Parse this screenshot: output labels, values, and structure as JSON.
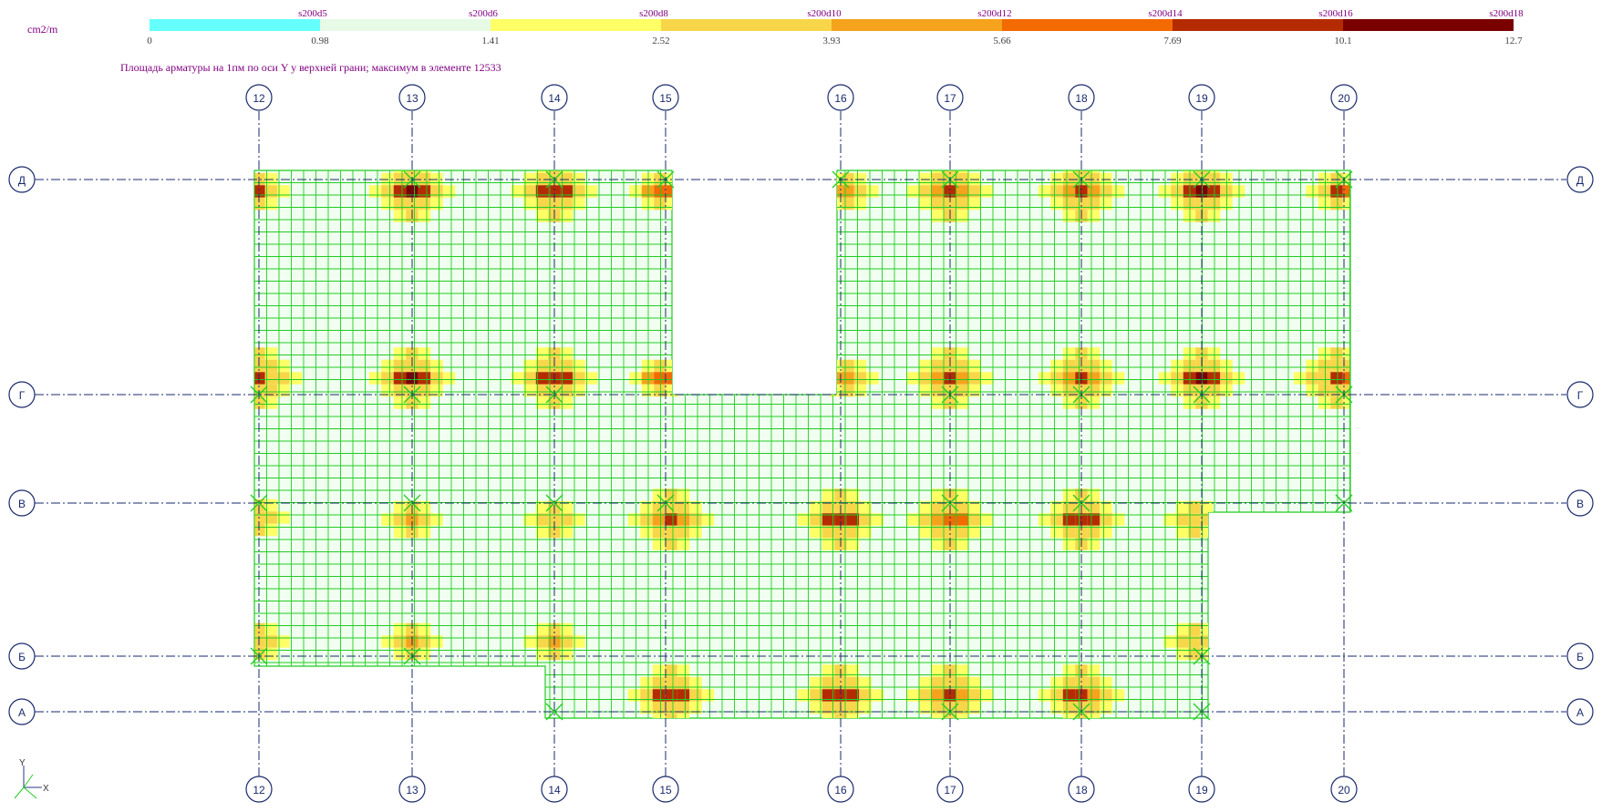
{
  "units_label": "cm2/m",
  "caption": "Площадь арматуры на 1пм по оси Y у верхней грани; максимум в элементе 12533",
  "legend": {
    "segments": [
      {
        "label": "s200d5",
        "color": "#66ffff"
      },
      {
        "label": "s200d6",
        "color": "#e6fae6"
      },
      {
        "label": "s200d8",
        "color": "#ffff66"
      },
      {
        "label": "s200d10",
        "color": "#f8d64a"
      },
      {
        "label": "s200d12",
        "color": "#f5a31c"
      },
      {
        "label": "s200d14",
        "color": "#f26a00"
      },
      {
        "label": "s200d16",
        "color": "#b52b00"
      },
      {
        "label": "s200d18",
        "color": "#7a0000"
      }
    ],
    "breaks": [
      "0",
      "0.98",
      "1.41",
      "2.52",
      "3.93",
      "5.66",
      "7.69",
      "10.1",
      "12.7"
    ]
  },
  "grid_axes": {
    "vertical": [
      "12",
      "13",
      "14",
      "15",
      "16",
      "17",
      "18",
      "19",
      "20"
    ],
    "horizontal": [
      "Д",
      "Г",
      "В",
      "Б",
      "А"
    ]
  },
  "mesh": {
    "line_color": "#22cc22",
    "fill_color": "#f0fff0"
  },
  "ucs": {
    "y_label": "Y",
    "x_label": "X"
  }
}
